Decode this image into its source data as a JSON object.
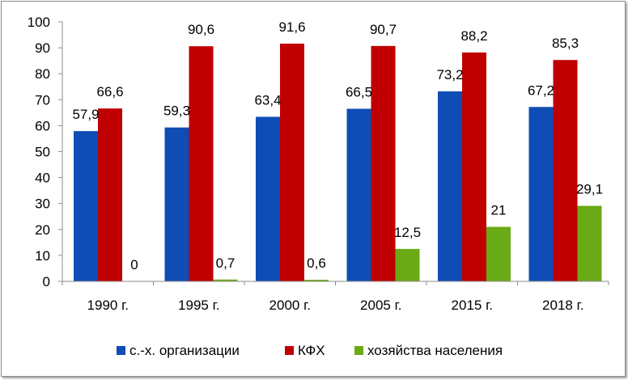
{
  "chart_data": {
    "type": "bar",
    "categories": [
      "1990 г.",
      "1995 г.",
      "2000 г.",
      "2005 г.",
      "2015 г.",
      "2018 г."
    ],
    "series": [
      {
        "name": "с.-х. организации",
        "color": "#0f4cb5",
        "values": [
          57.9,
          59.3,
          63.4,
          66.5,
          73.2,
          67.2
        ],
        "labels": [
          "57,9",
          "59,3",
          "63,4",
          "66,5",
          "73,2",
          "67,2"
        ]
      },
      {
        "name": "КФХ",
        "color": "#c00000",
        "values": [
          66.6,
          90.6,
          91.6,
          90.7,
          88.2,
          85.3
        ],
        "labels": [
          "66,6",
          "90,6",
          "91,6",
          "90,7",
          "88,2",
          "85,3"
        ]
      },
      {
        "name": "хозяйства населения",
        "color": "#6aaa16",
        "values": [
          0,
          0.7,
          0.6,
          12.5,
          21,
          29.1
        ],
        "labels": [
          "0",
          "0,7",
          "0,6",
          "12,5",
          "21",
          "29,1"
        ]
      }
    ],
    "yticks": [
      "0",
      "10",
      "20",
      "30",
      "40",
      "50",
      "60",
      "70",
      "80",
      "90",
      "100"
    ],
    "ylim": [
      0,
      100
    ],
    "grid": false,
    "legend_position": "bottom",
    "title": "",
    "xlabel": "",
    "ylabel": ""
  }
}
